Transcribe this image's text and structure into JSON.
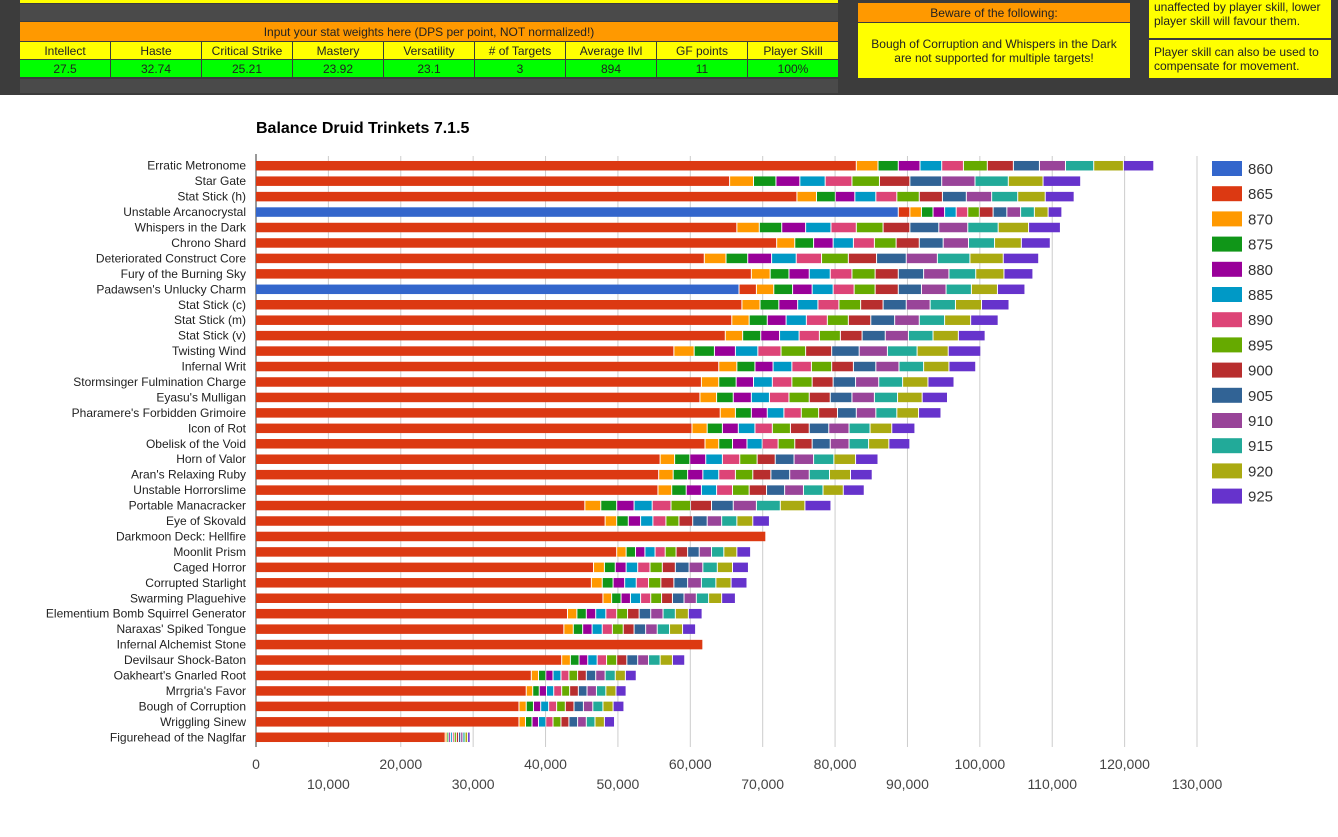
{
  "sheet": {
    "weights_header": "Input your stat weights here (DPS per point, NOT normalized!)",
    "columns": [
      "Intellect",
      "Haste",
      "Critical Strike",
      "Mastery",
      "Versatility",
      "# of Targets",
      "Average Ilvl",
      "GF points",
      "Player Skill"
    ],
    "values": [
      "27.5",
      "32.74",
      "25.21",
      "23.92",
      "23.1",
      "3",
      "894",
      "11",
      "100%"
    ],
    "beware_header": "Beware of the following:",
    "beware_text": "Bough of Corruption and Whispers in the Dark are not supported for multiple targets!",
    "note1": "unaffected by player skill, lower player skill will favour them.",
    "note2": "Player skill can also be used to compensate for movement."
  },
  "colors": {
    "860": "#3366cc",
    "865": "#dc3912",
    "870": "#ff9900",
    "875": "#109618",
    "880": "#990099",
    "885": "#0099c6",
    "890": "#dd4477",
    "895": "#66aa00",
    "900": "#b82e2e",
    "905": "#316395",
    "910": "#994499",
    "915": "#22aa99",
    "920": "#aaaa11",
    "925": "#6633cc"
  },
  "chart_data": {
    "type": "bar",
    "orientation": "horizontal",
    "stacked": true,
    "title": "Balance Druid Trinkets 7.1.5",
    "xlim": [
      0,
      130000
    ],
    "ticks_major": [
      0,
      20000,
      40000,
      60000,
      80000,
      100000,
      120000
    ],
    "ticks_minor": [
      10000,
      30000,
      50000,
      70000,
      90000,
      110000,
      130000
    ],
    "tick_labels_major": [
      "0",
      "20,000",
      "40,000",
      "60,000",
      "80,000",
      "100,000",
      "120,000"
    ],
    "tick_labels_minor": [
      "10,000",
      "30,000",
      "50,000",
      "70,000",
      "90,000",
      "110,000",
      "130,000"
    ],
    "grid": true,
    "legend_position": "right",
    "series_names": [
      "860",
      "865",
      "870",
      "875",
      "880",
      "885",
      "890",
      "895",
      "900",
      "905",
      "910",
      "915",
      "920",
      "925"
    ],
    "categories": [
      {
        "name": "Erratic Metronome",
        "series": [
          0,
          83000,
          3000,
          2800,
          3000,
          3000,
          3000,
          3300,
          3600,
          3600,
          3600,
          3900,
          4100,
          4200
        ]
      },
      {
        "name": "Star Gate",
        "series": [
          0,
          65500,
          3300,
          3100,
          3300,
          3500,
          3700,
          3800,
          4200,
          4400,
          4600,
          4600,
          4800,
          5200
        ]
      },
      {
        "name": "Stat Stick (h)",
        "series": [
          0,
          74800,
          2700,
          2600,
          2700,
          2900,
          2900,
          3100,
          3200,
          3300,
          3500,
          3600,
          3800,
          4000
        ]
      },
      {
        "name": "Unstable Arcanocrystal",
        "series": [
          88800,
          1600,
          1600,
          1600,
          1600,
          1600,
          1600,
          1600,
          1900,
          1900,
          1900,
          1900,
          1900,
          1900
        ]
      },
      {
        "name": "Whispers in the Dark",
        "series": [
          0,
          66500,
          3100,
          3100,
          3300,
          3500,
          3500,
          3700,
          3700,
          4000,
          4000,
          4200,
          4200,
          4400
        ]
      },
      {
        "name": "Chrono Shard",
        "series": [
          0,
          72000,
          2500,
          2600,
          2700,
          2800,
          2900,
          3000,
          3200,
          3300,
          3500,
          3600,
          3700,
          4000
        ]
      },
      {
        "name": "Deteriorated Construct Core",
        "series": [
          0,
          62000,
          3000,
          3000,
          3300,
          3400,
          3500,
          3700,
          3900,
          4100,
          4300,
          4500,
          4600,
          4900
        ]
      },
      {
        "name": "Fury of the Burning Sky",
        "series": [
          0,
          68500,
          2600,
          2600,
          2800,
          2900,
          3000,
          3200,
          3200,
          3500,
          3500,
          3700,
          3900,
          4000
        ]
      },
      {
        "name": "Padawsen's Unlucky Charm",
        "series": [
          66800,
          2400,
          2400,
          2600,
          2700,
          2900,
          2900,
          2900,
          3200,
          3200,
          3400,
          3500,
          3600,
          3800
        ]
      },
      {
        "name": "Stat Stick (c)",
        "series": [
          0,
          67200,
          2500,
          2600,
          2600,
          2800,
          2900,
          3000,
          3100,
          3200,
          3300,
          3500,
          3600,
          3800
        ]
      },
      {
        "name": "Stat Stick (m)",
        "series": [
          0,
          65800,
          2400,
          2500,
          2600,
          2800,
          2900,
          2900,
          3100,
          3300,
          3400,
          3500,
          3600,
          3800
        ]
      },
      {
        "name": "Stat Stick (v)",
        "series": [
          0,
          64900,
          2400,
          2500,
          2600,
          2700,
          2800,
          2900,
          3000,
          3200,
          3200,
          3400,
          3500,
          3700
        ]
      },
      {
        "name": "Twisting Wind",
        "series": [
          0,
          57800,
          2800,
          2800,
          2900,
          3100,
          3200,
          3400,
          3600,
          3800,
          3900,
          4100,
          4300,
          4500
        ]
      },
      {
        "name": "Infernal Writ",
        "series": [
          0,
          64000,
          2500,
          2500,
          2500,
          2600,
          2700,
          2800,
          3000,
          3100,
          3200,
          3400,
          3500,
          3700
        ]
      },
      {
        "name": "Stormsinger Fulmination Charge",
        "series": [
          0,
          61600,
          2400,
          2400,
          2400,
          2600,
          2700,
          2800,
          2900,
          3100,
          3200,
          3300,
          3500,
          3600
        ]
      },
      {
        "name": "Eyasu's Mulligan",
        "series": [
          0,
          61400,
          2300,
          2300,
          2500,
          2500,
          2700,
          2800,
          2900,
          3000,
          3100,
          3200,
          3400,
          3500
        ]
      },
      {
        "name": "Pharamere's Forbidden Grimoire",
        "series": [
          0,
          64200,
          2100,
          2200,
          2200,
          2300,
          2400,
          2400,
          2600,
          2600,
          2700,
          2900,
          3000,
          3100
        ]
      },
      {
        "name": "Icon of Rot",
        "series": [
          0,
          60300,
          2100,
          2100,
          2200,
          2300,
          2400,
          2500,
          2600,
          2700,
          2800,
          2900,
          3000,
          3200
        ]
      },
      {
        "name": "Obelisk of the Void",
        "series": [
          0,
          62100,
          1900,
          1900,
          2000,
          2100,
          2200,
          2300,
          2400,
          2500,
          2600,
          2700,
          2800,
          2900
        ]
      },
      {
        "name": "Horn of Valor",
        "series": [
          0,
          55900,
          2000,
          2100,
          2200,
          2300,
          2400,
          2400,
          2500,
          2600,
          2700,
          2800,
          3000,
          3100
        ]
      },
      {
        "name": "Aran's Relaxing Ruby",
        "series": [
          0,
          55700,
          2000,
          2000,
          2100,
          2200,
          2300,
          2400,
          2500,
          2600,
          2700,
          2800,
          2900,
          3000
        ]
      },
      {
        "name": "Unstable Horrorslime",
        "series": [
          0,
          55600,
          1900,
          2000,
          2100,
          2100,
          2200,
          2300,
          2400,
          2500,
          2600,
          2700,
          2800,
          2900
        ]
      },
      {
        "name": "Portable Manacracker",
        "series": [
          0,
          45500,
          2200,
          2200,
          2400,
          2500,
          2600,
          2700,
          2900,
          3000,
          3200,
          3300,
          3400,
          3600
        ]
      },
      {
        "name": "Eye of Skovald",
        "series": [
          0,
          48300,
          1600,
          1600,
          1700,
          1700,
          1800,
          1800,
          1900,
          2000,
          2000,
          2100,
          2200,
          2300
        ]
      },
      {
        "name": "Darkmoon Deck: Hellfire",
        "series": [
          0,
          70500,
          0,
          0,
          0,
          0,
          0,
          0,
          0,
          0,
          0,
          0,
          0,
          0
        ]
      },
      {
        "name": "Moonlit Prism",
        "series": [
          0,
          49900,
          1300,
          1300,
          1300,
          1400,
          1400,
          1500,
          1600,
          1600,
          1700,
          1700,
          1800,
          1900
        ]
      },
      {
        "name": "Caged Horror",
        "series": [
          0,
          46700,
          1500,
          1500,
          1500,
          1600,
          1700,
          1700,
          1800,
          1900,
          1900,
          2000,
          2100,
          2200
        ]
      },
      {
        "name": "Corrupted Starlight",
        "series": [
          0,
          46400,
          1500,
          1500,
          1600,
          1600,
          1700,
          1700,
          1800,
          1900,
          1900,
          2000,
          2100,
          2200
        ]
      },
      {
        "name": "Swarming Plaguehive",
        "series": [
          0,
          48000,
          1200,
          1300,
          1300,
          1400,
          1400,
          1500,
          1500,
          1600,
          1700,
          1700,
          1800,
          1900
        ]
      },
      {
        "name": "Elementium Bomb Squirrel Generator",
        "series": [
          0,
          43100,
          1300,
          1300,
          1300,
          1400,
          1500,
          1500,
          1600,
          1600,
          1700,
          1700,
          1800,
          1900
        ]
      },
      {
        "name": "Naraxas' Spiked Tongue",
        "series": [
          0,
          42600,
          1300,
          1300,
          1300,
          1400,
          1400,
          1500,
          1500,
          1600,
          1600,
          1700,
          1800,
          1800
        ]
      },
      {
        "name": "Infernal Alchemist Stone",
        "series": [
          0,
          61800,
          0,
          0,
          0,
          0,
          0,
          0,
          0,
          0,
          0,
          0,
          0,
          0
        ]
      },
      {
        "name": "Devilsaur Shock-Baton",
        "series": [
          0,
          42300,
          1200,
          1200,
          1200,
          1300,
          1300,
          1400,
          1400,
          1500,
          1500,
          1600,
          1700,
          1700
        ]
      },
      {
        "name": "Oakheart's Gnarled Root",
        "series": [
          0,
          38100,
          1000,
          1000,
          1000,
          1100,
          1100,
          1200,
          1200,
          1300,
          1300,
          1400,
          1400,
          1500
        ]
      },
      {
        "name": "Mrrgria's Favor",
        "series": [
          0,
          37400,
          900,
          900,
          1000,
          1000,
          1100,
          1100,
          1200,
          1200,
          1300,
          1300,
          1400,
          1400
        ]
      },
      {
        "name": "Bough of Corruption",
        "series": [
          0,
          36400,
          1000,
          1000,
          1000,
          1100,
          1100,
          1200,
          1200,
          1300,
          1300,
          1400,
          1400,
          1500
        ]
      },
      {
        "name": "Wriggling Sinew",
        "series": [
          0,
          36400,
          900,
          900,
          900,
          1000,
          1000,
          1100,
          1100,
          1200,
          1200,
          1200,
          1300,
          1400
        ]
      },
      {
        "name": "Figurehead of the Naglfar",
        "series": [
          0,
          26200,
          250,
          250,
          250,
          250,
          250,
          300,
          300,
          300,
          300,
          300,
          350,
          350
        ]
      }
    ]
  }
}
